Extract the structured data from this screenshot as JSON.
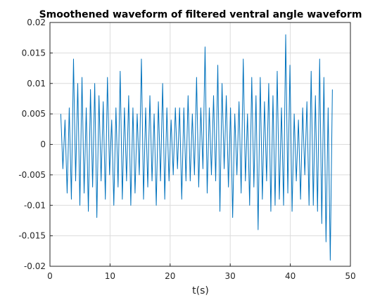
{
  "chart_data": {
    "type": "line",
    "title": "Smoothened waveform of filtered ventral angle waveform",
    "xlabel": "t(s)",
    "ylabel": "",
    "xlim": [
      0,
      50
    ],
    "ylim": [
      -0.02,
      0.02
    ],
    "x_ticks": [
      "0",
      "10",
      "20",
      "30",
      "40",
      "50"
    ],
    "y_ticks": [
      "0.02",
      "0.015",
      "0.01",
      "0.005",
      "0",
      "-0.005",
      "-0.01",
      "-0.015",
      "-0.02"
    ],
    "grid": true,
    "colors": {
      "line": "#0072BD",
      "grid": "#dcdcdc",
      "axis": "#262626"
    },
    "series": [
      {
        "x_start": 1.8,
        "x_end": 47.0,
        "values": [
          0.005,
          -0.004,
          0.004,
          -0.008,
          0.006,
          -0.009,
          0.014,
          -0.006,
          0.01,
          -0.01,
          0.011,
          -0.008,
          0.006,
          -0.011,
          0.009,
          -0.007,
          0.01,
          -0.012,
          0.008,
          -0.006,
          0.007,
          -0.009,
          0.011,
          -0.005,
          0.004,
          -0.01,
          0.006,
          -0.007,
          0.012,
          -0.009,
          0.006,
          -0.006,
          0.008,
          -0.01,
          0.006,
          -0.008,
          0.005,
          -0.005,
          0.014,
          -0.009,
          0.006,
          -0.007,
          0.008,
          -0.006,
          0.005,
          -0.01,
          0.007,
          -0.006,
          0.01,
          -0.009,
          0.006,
          -0.006,
          0.004,
          -0.005,
          0.006,
          -0.004,
          0.006,
          -0.009,
          0.006,
          -0.006,
          0.008,
          -0.006,
          0.005,
          -0.005,
          0.011,
          -0.007,
          0.006,
          -0.004,
          0.016,
          -0.008,
          0.006,
          -0.005,
          0.008,
          -0.006,
          0.013,
          -0.011,
          0.01,
          -0.004,
          0.008,
          -0.007,
          0.006,
          -0.012,
          0.005,
          -0.005,
          0.007,
          -0.008,
          0.014,
          -0.006,
          0.005,
          -0.01,
          0.011,
          -0.007,
          0.008,
          -0.014,
          0.011,
          -0.009,
          0.007,
          -0.006,
          0.01,
          -0.011,
          0.008,
          -0.01,
          0.012,
          -0.009,
          0.006,
          -0.01,
          0.018,
          -0.008,
          0.013,
          -0.011,
          0.005,
          -0.006,
          0.004,
          -0.009,
          0.006,
          -0.005,
          0.007,
          -0.01,
          0.012,
          -0.01,
          0.008,
          -0.011,
          0.014,
          -0.013,
          0.011,
          -0.016,
          0.006,
          -0.019,
          0.009
        ]
      }
    ]
  }
}
